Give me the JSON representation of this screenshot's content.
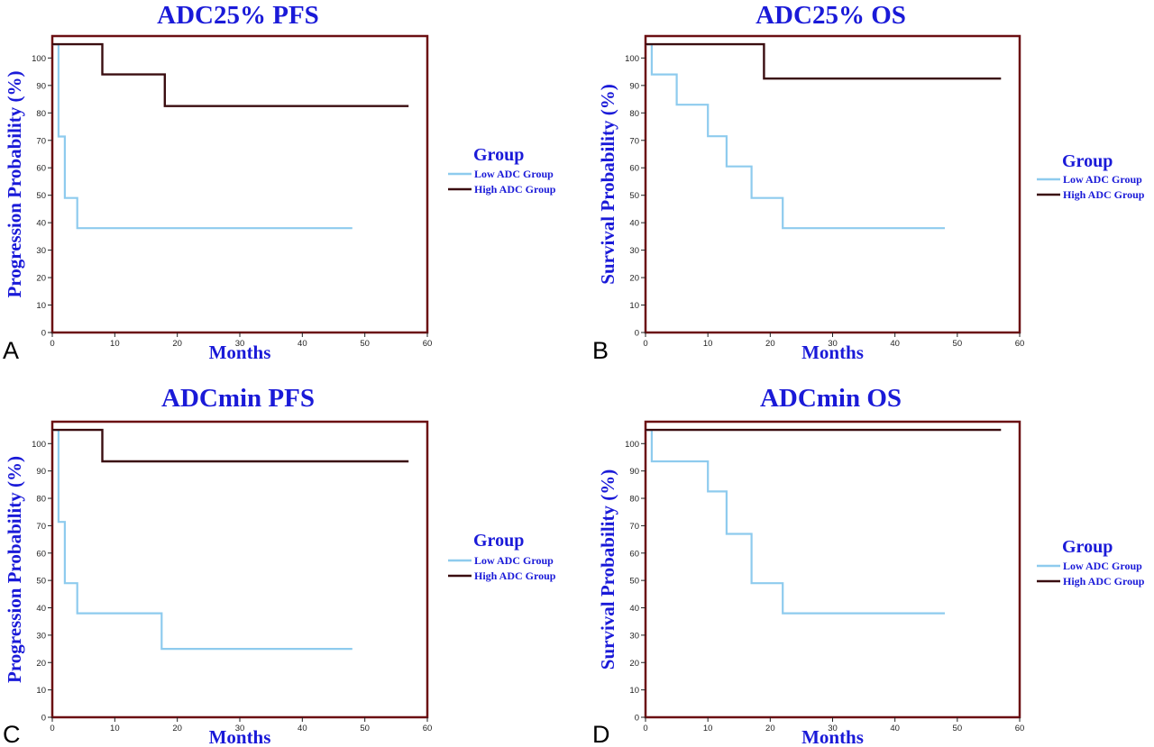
{
  "colors": {
    "frame": "#6b0f12",
    "low": "#8ecbee",
    "high": "#3a0d10",
    "text": "#1a1ad8"
  },
  "chart_data": [
    {
      "panel_letter": "A",
      "type": "line",
      "step": true,
      "title": "ADC25% PFS",
      "xlabel": "Months",
      "ylabel": "Progression Probability (%)",
      "xlim": [
        0,
        60
      ],
      "ylim": [
        0,
        108
      ],
      "xticks": [
        0,
        10,
        20,
        30,
        40,
        50,
        60
      ],
      "yticks": [
        0,
        10,
        20,
        30,
        40,
        50,
        60,
        70,
        80,
        90,
        100
      ],
      "legend_title": "Group",
      "legend_position": "right",
      "series": [
        {
          "name": "Low ADC Group",
          "x": [
            0,
            1,
            2,
            4,
            48
          ],
          "y": [
            105,
            71.4,
            49,
            38,
            38
          ]
        },
        {
          "name": "High ADC Group",
          "x": [
            0,
            8,
            18,
            57
          ],
          "y": [
            105,
            94,
            82.5,
            82.5
          ]
        }
      ]
    },
    {
      "panel_letter": "B",
      "type": "line",
      "step": true,
      "title": "ADC25% OS",
      "xlabel": "Months",
      "ylabel": "Survival Probability (%)",
      "xlim": [
        0,
        60
      ],
      "ylim": [
        0,
        108
      ],
      "xticks": [
        0,
        10,
        20,
        30,
        40,
        50,
        60
      ],
      "yticks": [
        0,
        10,
        20,
        30,
        40,
        50,
        60,
        70,
        80,
        90,
        100
      ],
      "legend_title": "Group",
      "legend_position": "right",
      "series": [
        {
          "name": "Low ADC Group",
          "x": [
            0,
            1,
            5,
            10,
            13,
            17,
            22,
            48
          ],
          "y": [
            105,
            94,
            83,
            71.5,
            60.5,
            49,
            38,
            38
          ]
        },
        {
          "name": "High ADC Group",
          "x": [
            0,
            19,
            57
          ],
          "y": [
            105,
            92.5,
            92.5
          ]
        }
      ]
    },
    {
      "panel_letter": "C",
      "type": "line",
      "step": true,
      "title": "ADCmin PFS",
      "xlabel": "Months",
      "ylabel": "Progression Probability (%)",
      "xlim": [
        0,
        60
      ],
      "ylim": [
        0,
        108
      ],
      "xticks": [
        0,
        10,
        20,
        30,
        40,
        50,
        60
      ],
      "yticks": [
        0,
        10,
        20,
        30,
        40,
        50,
        60,
        70,
        80,
        90,
        100
      ],
      "legend_title": "Group",
      "legend_position": "right",
      "series": [
        {
          "name": "Low ADC Group",
          "x": [
            0,
            1,
            2,
            4,
            17.5,
            48
          ],
          "y": [
            105,
            71.4,
            49,
            38,
            25,
            25
          ]
        },
        {
          "name": "High ADC Group",
          "x": [
            0,
            8,
            57
          ],
          "y": [
            105,
            93.5,
            93.5
          ]
        }
      ]
    },
    {
      "panel_letter": "D",
      "type": "line",
      "step": true,
      "title": "ADCmin OS",
      "xlabel": "Months",
      "ylabel": "Survival Probability (%)",
      "xlim": [
        0,
        60
      ],
      "ylim": [
        0,
        108
      ],
      "xticks": [
        0,
        10,
        20,
        30,
        40,
        50,
        60
      ],
      "yticks": [
        0,
        10,
        20,
        30,
        40,
        50,
        60,
        70,
        80,
        90,
        100
      ],
      "legend_title": "Group",
      "legend_position": "right",
      "series": [
        {
          "name": "Low ADC Group",
          "x": [
            0,
            1,
            10,
            13,
            17,
            22,
            48
          ],
          "y": [
            105,
            93.5,
            82.5,
            67,
            49,
            38,
            38
          ]
        },
        {
          "name": "High ADC Group",
          "x": [
            0,
            57
          ],
          "y": [
            105,
            105
          ]
        }
      ]
    }
  ]
}
